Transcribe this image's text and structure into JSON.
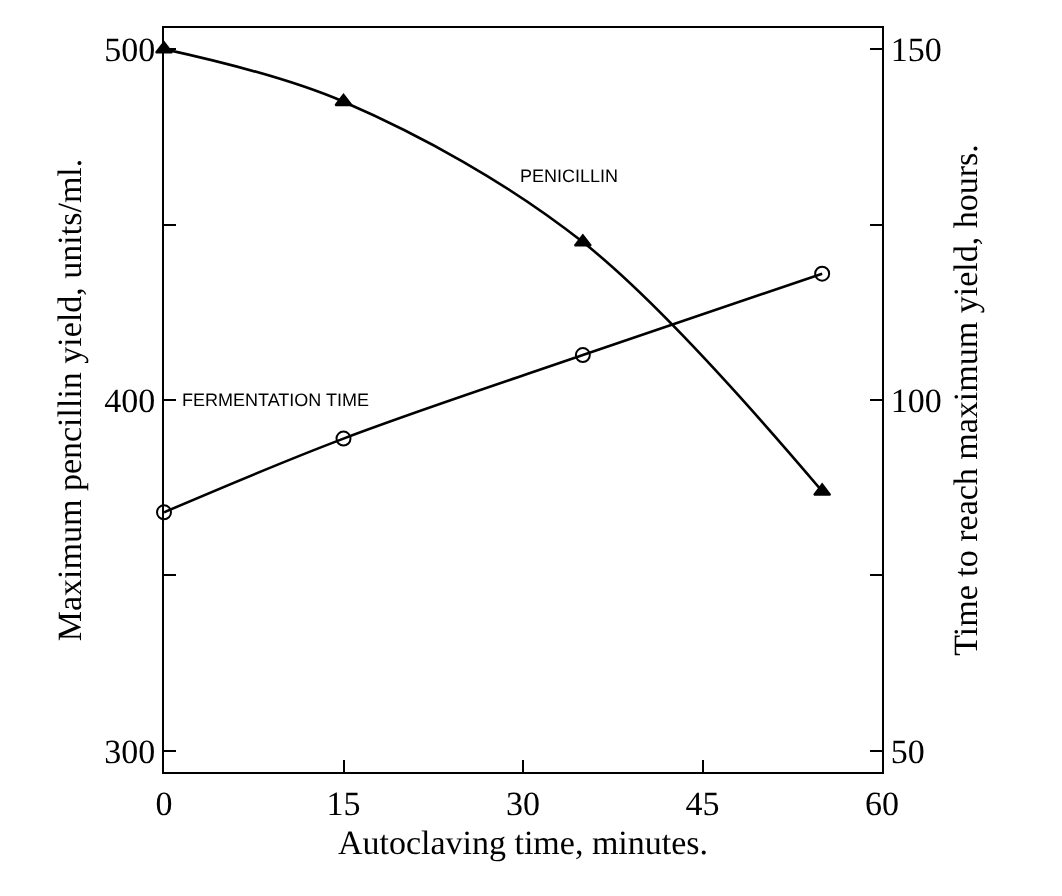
{
  "chart_data": {
    "type": "line",
    "xlabel": "Autoclaving time, minutes.",
    "ylabel": "Maximum pencillin yield, units/ml.",
    "y2label": "Time to reach maximum yield, hours.",
    "xlim": [
      0,
      60
    ],
    "xticks": [
      0,
      15,
      30,
      45,
      60
    ],
    "ylim": [
      294,
      506
    ],
    "yticks": [
      {
        "value": 300,
        "label": "300"
      },
      {
        "value": 350,
        "label": null
      },
      {
        "value": 400,
        "label": "400"
      },
      {
        "value": 450,
        "label": null
      },
      {
        "value": 500,
        "label": "500"
      }
    ],
    "y2lim": [
      47,
      153
    ],
    "y2ticks": [
      {
        "value": 50,
        "label": "50"
      },
      {
        "value": 75,
        "label": null
      },
      {
        "value": 100,
        "label": "100"
      },
      {
        "value": 125,
        "label": null
      },
      {
        "value": 150,
        "label": "150"
      }
    ],
    "legend": false,
    "series": [
      {
        "name": "PENICILLIN",
        "color": "#000000",
        "marker": "triangle",
        "x": [
          0,
          15,
          35,
          55
        ],
        "values": [
          500,
          485,
          445,
          374
        ]
      },
      {
        "name": "FERMENTATION TIME",
        "color": "#000000",
        "marker": "circle",
        "axis": "y2",
        "x": [
          0,
          15,
          35,
          55
        ],
        "values": [
          84,
          94.5,
          106.4,
          118
        ]
      }
    ]
  }
}
